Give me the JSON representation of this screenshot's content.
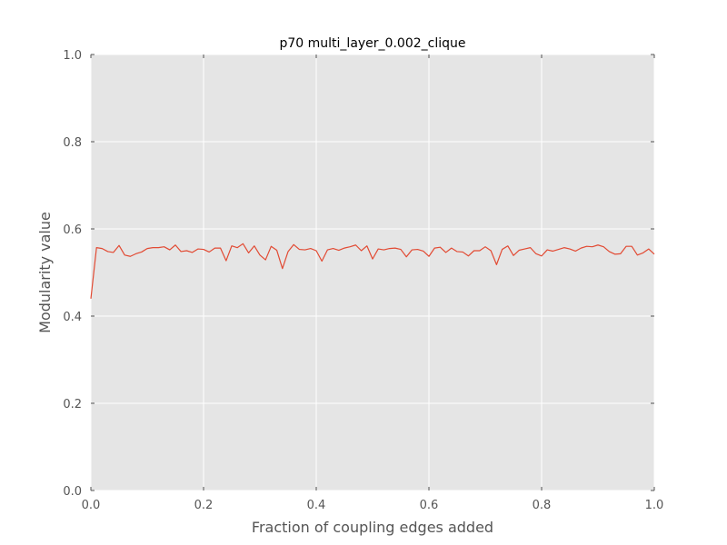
{
  "chart_data": {
    "type": "line",
    "title": "p70 multi_layer_0.002_clique",
    "xlabel": "Fraction of coupling edges added",
    "ylabel": "Modularity value",
    "xlim": [
      0.0,
      1.0
    ],
    "ylim": [
      0.0,
      1.0
    ],
    "xticks": [
      "0.0",
      "0.2",
      "0.4",
      "0.6",
      "0.8",
      "1.0"
    ],
    "yticks": [
      "0.0",
      "0.2",
      "0.4",
      "0.6",
      "0.8",
      "1.0"
    ],
    "grid": true,
    "background_color": "#e5e5e5",
    "grid_color": "#ffffff",
    "series": [
      {
        "color": "#e24a33",
        "x": [
          0.0,
          0.01,
          0.02,
          0.03,
          0.04,
          0.05,
          0.06,
          0.07,
          0.08,
          0.09,
          0.1,
          0.11,
          0.12,
          0.13,
          0.14,
          0.15,
          0.16,
          0.17,
          0.18,
          0.19,
          0.2,
          0.21,
          0.22,
          0.23,
          0.24,
          0.25,
          0.26,
          0.27,
          0.28,
          0.29,
          0.3,
          0.31,
          0.32,
          0.33,
          0.34,
          0.35,
          0.36,
          0.37,
          0.38,
          0.39,
          0.4,
          0.41,
          0.42,
          0.43,
          0.44,
          0.45,
          0.46,
          0.47,
          0.48,
          0.49,
          0.5,
          0.51,
          0.52,
          0.53,
          0.54,
          0.55,
          0.56,
          0.57,
          0.58,
          0.59,
          0.6,
          0.61,
          0.62,
          0.63,
          0.64,
          0.65,
          0.66,
          0.67,
          0.68,
          0.69,
          0.7,
          0.71,
          0.72,
          0.73,
          0.74,
          0.75,
          0.76,
          0.77,
          0.78,
          0.79,
          0.8,
          0.81,
          0.82,
          0.83,
          0.84,
          0.85,
          0.86,
          0.87,
          0.88,
          0.89,
          0.9,
          0.91,
          0.92,
          0.93,
          0.94,
          0.95,
          0.96,
          0.97,
          0.98,
          0.99,
          1.0
        ],
        "y": [
          0.44,
          0.557,
          0.555,
          0.548,
          0.546,
          0.562,
          0.54,
          0.537,
          0.543,
          0.547,
          0.555,
          0.557,
          0.557,
          0.559,
          0.552,
          0.563,
          0.548,
          0.55,
          0.546,
          0.554,
          0.553,
          0.547,
          0.556,
          0.556,
          0.527,
          0.561,
          0.557,
          0.566,
          0.545,
          0.561,
          0.54,
          0.529,
          0.56,
          0.551,
          0.509,
          0.548,
          0.564,
          0.553,
          0.552,
          0.555,
          0.55,
          0.526,
          0.552,
          0.555,
          0.551,
          0.556,
          0.559,
          0.563,
          0.55,
          0.561,
          0.531,
          0.554,
          0.552,
          0.555,
          0.556,
          0.553,
          0.536,
          0.552,
          0.553,
          0.549,
          0.537,
          0.556,
          0.558,
          0.546,
          0.556,
          0.548,
          0.547,
          0.538,
          0.55,
          0.55,
          0.559,
          0.55,
          0.518,
          0.553,
          0.561,
          0.539,
          0.551,
          0.554,
          0.557,
          0.543,
          0.538,
          0.552,
          0.549,
          0.553,
          0.557,
          0.554,
          0.549,
          0.556,
          0.56,
          0.559,
          0.563,
          0.559,
          0.548,
          0.542,
          0.543,
          0.56,
          0.56,
          0.54,
          0.545,
          0.554,
          0.542
        ]
      }
    ]
  }
}
